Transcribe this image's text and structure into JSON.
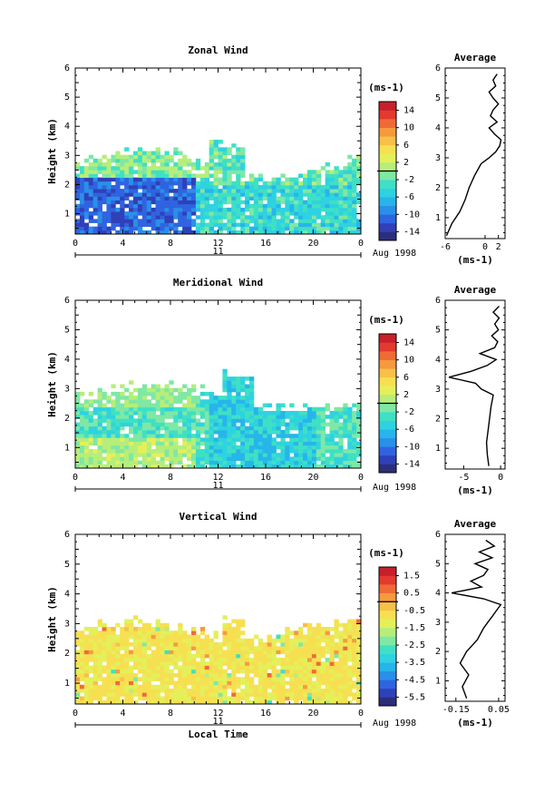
{
  "chart_data": [
    {
      "type": "heatmap",
      "title": "Zonal Wind",
      "ylabel": "Height (km)",
      "xlim": [
        0,
        24
      ],
      "ylim": [
        0.3,
        6
      ],
      "x_ticks": [
        "0",
        "4",
        "8",
        "12",
        "16",
        "20",
        "0"
      ],
      "y_ticks": [
        "1",
        "2",
        "3",
        "4",
        "5",
        "6"
      ],
      "date_marker": "11",
      "date_label": "Aug 1998",
      "colorbar": {
        "unit": "(ms-1)",
        "range": [
          -16,
          16
        ],
        "ticks": [
          "14",
          "10",
          "6",
          "2",
          "-2",
          "-6",
          "-10",
          "-14"
        ],
        "tick_values": [
          14,
          10,
          6,
          2,
          -2,
          -6,
          -10,
          -14
        ]
      },
      "profile": {
        "title": "Average",
        "xlabel": "(ms-1)",
        "x_ticks": [
          "-6",
          "0",
          "2"
        ],
        "x_tick_values": [
          -6,
          0,
          2
        ],
        "xlim": [
          -6,
          3
        ],
        "heights": [
          0.4,
          0.8,
          1.2,
          1.6,
          2.0,
          2.4,
          2.8,
          3.0,
          3.2,
          3.4,
          3.6,
          3.8,
          4.0,
          4.2,
          4.4,
          4.6,
          4.8,
          5.0,
          5.2,
          5.4,
          5.6,
          5.8
        ],
        "values": [
          -5.8,
          -5,
          -3.8,
          -3,
          -2.4,
          -1.6,
          -0.6,
          0.6,
          1.6,
          2.2,
          2.4,
          1.4,
          0.6,
          1.8,
          0.8,
          1.2,
          2,
          1.2,
          0.6,
          1.6,
          1.2,
          1.8
        ]
      }
    },
    {
      "type": "heatmap",
      "title": "Meridional Wind",
      "ylabel": "Height (km)",
      "xlim": [
        0,
        24
      ],
      "ylim": [
        0.3,
        6
      ],
      "x_ticks": [
        "0",
        "4",
        "8",
        "12",
        "16",
        "20",
        "0"
      ],
      "y_ticks": [
        "1",
        "2",
        "3",
        "4",
        "5",
        "6"
      ],
      "date_marker": "11",
      "date_label": "Aug 1998",
      "colorbar": {
        "unit": "(ms-1)",
        "range": [
          -16,
          16
        ],
        "ticks": [
          "14",
          "10",
          "6",
          "2",
          "-2",
          "-6",
          "-10",
          "-14"
        ],
        "tick_values": [
          14,
          10,
          6,
          2,
          -2,
          -6,
          -10,
          -14
        ]
      },
      "profile": {
        "title": "Average",
        "xlabel": "(ms-1)",
        "x_ticks": [
          "-5",
          "0"
        ],
        "x_tick_values": [
          -5,
          0
        ],
        "xlim": [
          -7.5,
          0.6
        ],
        "heights": [
          0.4,
          0.8,
          1.2,
          1.6,
          2.0,
          2.4,
          2.8,
          3.0,
          3.2,
          3.4,
          3.6,
          3.8,
          4.0,
          4.2,
          4.4,
          4.6,
          4.8,
          5.0,
          5.2,
          5.4,
          5.6,
          5.8
        ],
        "values": [
          -1.6,
          -1.8,
          -1.9,
          -1.7,
          -1.5,
          -1.3,
          -1,
          -2.6,
          -3.4,
          -7,
          -4,
          -1.8,
          -0.6,
          -2.8,
          -0.8,
          -0.4,
          -1.2,
          -0.3,
          -0.8,
          -0.2,
          -1.0,
          -0.2
        ]
      }
    },
    {
      "type": "heatmap",
      "title": "Vertical Wind",
      "ylabel": "Height (km)",
      "xlabel": "Local Time",
      "xlim": [
        0,
        24
      ],
      "ylim": [
        0.3,
        6
      ],
      "x_ticks": [
        "0",
        "4",
        "8",
        "12",
        "16",
        "20",
        "0"
      ],
      "y_ticks": [
        "1",
        "2",
        "3",
        "4",
        "5",
        "6"
      ],
      "date_marker": "11",
      "date_label": "Aug 1998",
      "colorbar": {
        "unit": "(ms-1)",
        "range": [
          -6,
          2
        ],
        "ticks": [
          "1.5",
          "0.5",
          "-0.5",
          "-1.5",
          "-2.5",
          "-3.5",
          "-4.5",
          "-5.5"
        ],
        "tick_values": [
          1.5,
          0.5,
          -0.5,
          -1.5,
          -2.5,
          -3.5,
          -4.5,
          -5.5
        ]
      },
      "profile": {
        "title": "Average",
        "xlabel": "(ms-1)",
        "x_ticks": [
          "-0.15",
          "0.05"
        ],
        "x_tick_values": [
          -0.15,
          0.05
        ],
        "xlim": [
          -0.2,
          0.08
        ],
        "heights": [
          0.4,
          0.8,
          1.2,
          1.6,
          2.0,
          2.4,
          2.8,
          3.0,
          3.2,
          3.4,
          3.6,
          3.8,
          4.0,
          4.2,
          4.4,
          4.6,
          4.8,
          5.0,
          5.2,
          5.4,
          5.6,
          5.8
        ],
        "values": [
          -0.1,
          -0.12,
          -0.09,
          -0.13,
          -0.1,
          -0.05,
          -0.02,
          0.0,
          0.02,
          0.04,
          0.06,
          -0.02,
          -0.17,
          -0.03,
          -0.08,
          -0.02,
          0.0,
          -0.06,
          0.02,
          -0.04,
          0.03,
          -0.01
        ]
      }
    }
  ],
  "shared": {
    "time_axis_label": "Local Time",
    "colors": {
      "colorbar_scale": [
        "#2b2f7a",
        "#3040b8",
        "#2f64e0",
        "#2a8fe8",
        "#27b5ea",
        "#2fd2e0",
        "#3fe0c4",
        "#7ee8a4",
        "#b6ee7a",
        "#e4f05a",
        "#f6e052",
        "#f8c048",
        "#f69a3e",
        "#f06a36",
        "#e23a2e",
        "#c8202a"
      ]
    }
  }
}
